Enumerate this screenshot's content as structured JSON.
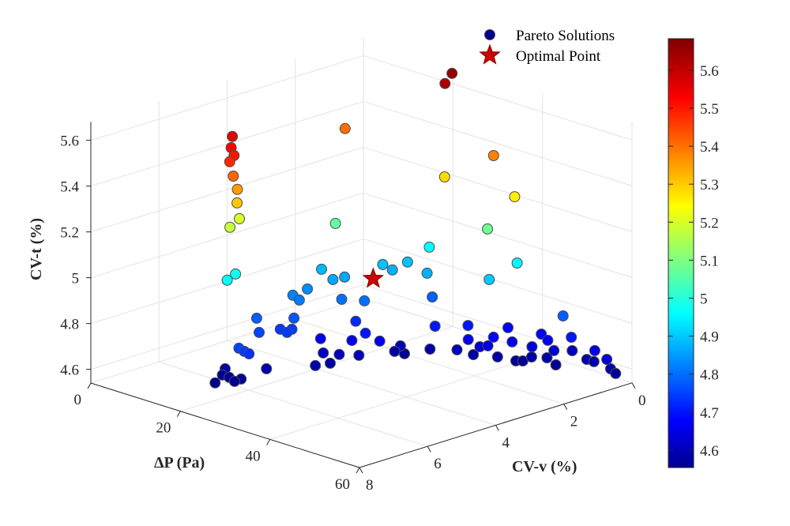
{
  "chart_data": {
    "type": "scatter",
    "dimensions": 3,
    "xlabel": "ΔP (Pa)",
    "ylabel": "CV-v (%)",
    "zlabel": "CV-t (%)",
    "xlim": [
      0,
      60
    ],
    "ylim": [
      0,
      8
    ],
    "zlim": [
      4.54,
      5.68
    ],
    "x_ticks": [
      "0",
      "20",
      "40",
      "60"
    ],
    "y_ticks": [
      "0",
      "2",
      "4",
      "6",
      "8"
    ],
    "z_ticks": [
      "4.6",
      "4.8",
      "5",
      "5.2",
      "5.4",
      "5.6"
    ],
    "grid": true,
    "colormap": "jet",
    "colorbar": {
      "range": [
        4.554,
        5.683
      ],
      "ticks": [
        "4.6",
        "4.7",
        "4.8",
        "4.9",
        "5",
        "5.1",
        "5.2",
        "5.3",
        "5.4",
        "5.5",
        "5.6"
      ]
    },
    "legend": {
      "placement": "top-right",
      "entries": [
        "Pareto Solutions",
        "Optimal Point"
      ]
    },
    "marker_edge_color": "#4d4d4d",
    "optimal_color": "#cc0000",
    "series": [
      {
        "name": "Pareto Solutions",
        "marker": "circle",
        "points": [
          [
            21.1,
            0.17,
            5.66
          ],
          [
            21.5,
            0.43,
            5.63
          ],
          [
            9.3,
            1.76,
            5.42
          ],
          [
            33.8,
            0.62,
            5.4
          ],
          [
            27.8,
            1.27,
            5.3
          ],
          [
            41.0,
            0.95,
            5.28
          ],
          [
            34.8,
            0.93,
            5.1
          ],
          [
            14.3,
            2.7,
            5.08
          ],
          [
            39.6,
            0.69,
            4.97
          ],
          [
            38.3,
            1.34,
            4.92
          ],
          [
            25.0,
            1.35,
            4.98
          ],
          [
            11.9,
            5.41,
            5.57
          ],
          [
            13.3,
            5.63,
            5.54
          ],
          [
            14.8,
            5.74,
            5.52
          ],
          [
            14.9,
            5.88,
            5.5
          ],
          [
            14.7,
            5.75,
            5.43
          ],
          [
            15.0,
            5.67,
            5.37
          ],
          [
            15.7,
            5.77,
            5.32
          ],
          [
            13.4,
            5.4,
            5.22
          ],
          [
            13.8,
            5.73,
            5.2
          ],
          [
            13.9,
            5.58,
            4.99
          ],
          [
            14.4,
            5.89,
            4.98
          ],
          [
            14.4,
            3.12,
            4.9
          ],
          [
            17.7,
            3.22,
            4.88
          ],
          [
            18.1,
            2.93,
            4.88
          ],
          [
            20.3,
            2.1,
            4.91
          ],
          [
            21.7,
            2.0,
            4.89
          ],
          [
            22.2,
            1.62,
            4.91
          ],
          [
            26.7,
            1.64,
            4.89
          ],
          [
            15.8,
            3.72,
            4.85
          ],
          [
            15.6,
            4.12,
            4.84
          ],
          [
            17.2,
            4.14,
            4.83
          ],
          [
            20.8,
            3.37,
            4.82
          ],
          [
            23.9,
            3.11,
            4.82
          ],
          [
            28.4,
            1.71,
            4.8
          ],
          [
            49.7,
            0.67,
            4.8
          ],
          [
            16.5,
            5.3,
            4.8
          ],
          [
            19.4,
            5.61,
            4.77
          ],
          [
            19.8,
            5.04,
            4.76
          ],
          [
            21.7,
            5.09,
            4.76
          ],
          [
            21.1,
            4.87,
            4.76
          ],
          [
            19.8,
            4.64,
            4.79
          ],
          [
            23.7,
            3.34,
            4.74
          ],
          [
            27.4,
            3.54,
            4.72
          ],
          [
            25.2,
            3.65,
            4.68
          ],
          [
            27.7,
            3.16,
            4.67
          ],
          [
            21.1,
            4.03,
            4.68
          ],
          [
            22.8,
            6.65,
            4.77
          ],
          [
            23.7,
            6.61,
            4.76
          ],
          [
            24.3,
            6.55,
            4.75
          ],
          [
            19.3,
            5.38,
            4.6
          ],
          [
            23.6,
            4.51,
            4.6
          ],
          [
            22.4,
            4.12,
            4.63
          ],
          [
            24.4,
            4.18,
            4.6
          ],
          [
            23.9,
            3.85,
            4.62
          ],
          [
            26.4,
            3.6,
            4.62
          ],
          [
            14.7,
            5.99,
            4.6
          ],
          [
            15.0,
            6.11,
            4.58
          ],
          [
            16.6,
            6.12,
            4.58
          ],
          [
            17.8,
            6.12,
            4.57
          ],
          [
            18.5,
            6.02,
            4.58
          ],
          [
            16.2,
            6.48,
            4.57
          ],
          [
            32.6,
            2.18,
            4.72
          ],
          [
            36.0,
            1.66,
            4.72
          ],
          [
            39.6,
            0.96,
            4.7
          ],
          [
            45.6,
            0.77,
            4.7
          ],
          [
            51.7,
            0.69,
            4.72
          ],
          [
            55.8,
            0.54,
            4.68
          ],
          [
            57.8,
            0.45,
            4.65
          ],
          [
            57.5,
            0.3,
            4.6
          ],
          [
            58.1,
            0.23,
            4.58
          ],
          [
            53.1,
            0.21,
            4.6
          ],
          [
            51.5,
            0.21,
            4.6
          ],
          [
            48.4,
            0.23,
            4.62
          ],
          [
            48.4,
            0.71,
            4.58
          ],
          [
            48.8,
            0.82,
            4.65
          ],
          [
            46.9,
            0.75,
            4.68
          ],
          [
            46.5,
            0.72,
            4.6
          ],
          [
            44.5,
            0.91,
            4.6
          ],
          [
            45.8,
            1.07,
            4.66
          ],
          [
            43.3,
            1.01,
            4.58
          ],
          [
            42.5,
            1.11,
            4.58
          ],
          [
            43.5,
            1.35,
            4.68
          ],
          [
            40.7,
            1.41,
            4.6
          ],
          [
            41.4,
            1.62,
            4.7
          ],
          [
            40.6,
            1.68,
            4.66
          ],
          [
            39.2,
            1.73,
            4.65
          ],
          [
            37.2,
            1.66,
            4.6
          ],
          [
            37.8,
            1.89,
            4.68
          ],
          [
            35.3,
            1.89,
            4.62
          ],
          [
            30.4,
            2.04,
            4.6
          ],
          [
            27.6,
            2.42,
            4.58
          ],
          [
            27.6,
            2.54,
            4.62
          ],
          [
            27.3,
            2.67,
            4.6
          ]
        ]
      },
      {
        "name": "Optimal Point",
        "marker": "star",
        "points": [
          [
            23.5,
            2.8,
            4.9
          ]
        ]
      }
    ]
  }
}
